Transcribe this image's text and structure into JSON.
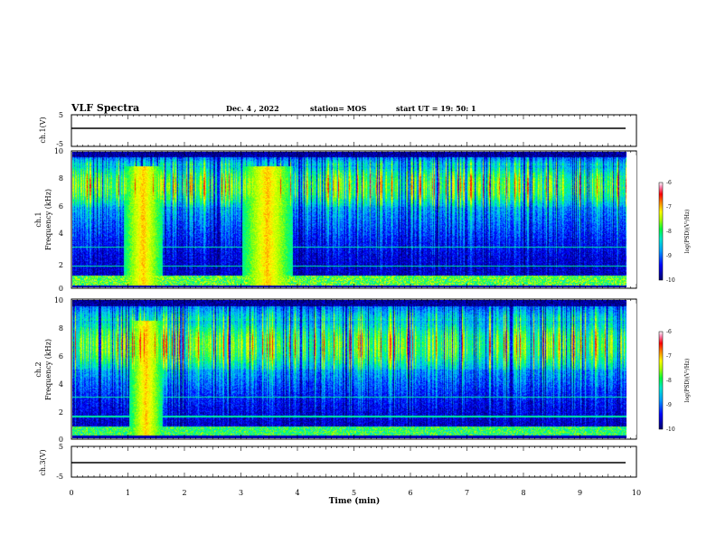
{
  "header": {
    "title": "VLF Spectra",
    "date": "Dec. 4 , 2022",
    "station": "station= MOS",
    "start": "start UT = 19: 50: 1"
  },
  "colors": {
    "spectrum_background": "#00005a",
    "colormap": [
      "#00006a",
      "#0000ff",
      "#0090ff",
      "#00e0e0",
      "#00ff60",
      "#a0ff00",
      "#ffff00",
      "#ff8000",
      "#ff0000",
      "#ff60a0",
      "#ffffff"
    ]
  },
  "chart_data": [
    {
      "type": "line",
      "panel": "ch1-voltage",
      "ylabel": "ch.1(V)",
      "ylim": [
        -5,
        5
      ],
      "ytick_labels": [
        "5",
        "-5"
      ],
      "value_description": "flat trace",
      "approx_value": 0
    },
    {
      "type": "heatmap",
      "panel": "ch1-spectrogram",
      "ylabel_channel": "ch.1",
      "ylabel": "Frequency (kHz)",
      "ylim": [
        0,
        10
      ],
      "ytick_labels": [
        "0",
        "2",
        "4",
        "6",
        "8",
        "10"
      ],
      "colorbar": {
        "label": "log(PSD)(V²/Hz)",
        "range": [
          -10,
          -6
        ],
        "tick_labels": [
          "-6",
          "-7",
          "-8",
          "-9",
          "-10"
        ]
      },
      "features": {
        "main_band_khz": [
          6,
          9
        ],
        "broadband_bursts_min": [
          [
            0.9,
            1.6
          ],
          [
            3.0,
            3.9
          ]
        ]
      }
    },
    {
      "type": "heatmap",
      "panel": "ch2-spectrogram",
      "ylabel_channel": "ch.2",
      "ylabel": "Frequency (kHz)",
      "ylim": [
        0,
        10
      ],
      "ytick_labels": [
        "0",
        "2",
        "4",
        "6",
        "8",
        "10"
      ],
      "colorbar": {
        "label": "log(PSD)(V²/Hz)",
        "range": [
          -10,
          -6
        ],
        "tick_labels": [
          "-6",
          "-7",
          "-8",
          "-9",
          "-10"
        ]
      },
      "features": {
        "main_band_khz": [
          5,
          8.5
        ],
        "broadband_bursts_min": [
          [
            1.0,
            1.6
          ]
        ]
      }
    },
    {
      "type": "line",
      "panel": "ch3-voltage",
      "ylabel": "ch.3(V)",
      "ylim": [
        -5,
        5
      ],
      "ytick_labels": [
        "5",
        "-5"
      ],
      "value_description": "flat trace",
      "approx_value": 0
    }
  ],
  "xaxis": {
    "label": "Time (min)",
    "xlim": [
      0,
      10
    ],
    "tick_labels": [
      "0",
      "1",
      "2",
      "3",
      "4",
      "5",
      "6",
      "7",
      "8",
      "9",
      "10"
    ],
    "data_end_min": 9.82
  }
}
